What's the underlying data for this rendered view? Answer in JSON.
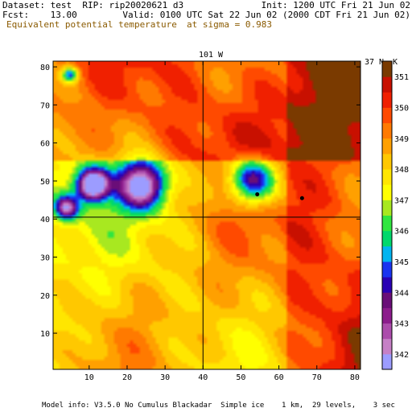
{
  "header": {
    "dataset": "Dataset: test  RIP: rip20020621 d3",
    "init": "Init: 1200 UTC Fri 21 Jun 02",
    "fcst": "Fcst:    13.00",
    "valid": "Valid: 0100 UTC Sat 22 Jun 02 (2000 CDT Fri 21 Jun 02)",
    "field": "Equivalent potential temperature",
    "level": "at sigma = 0.983"
  },
  "footer": "Model info: V3.5.0 No Cumulus Blackadar  Simple ice    1 km,  29 levels,    3 sec",
  "map_labels": {
    "meridian": "101 W",
    "parallel": "37 N"
  },
  "colors": {
    "title_secondary": "#8a5a00"
  },
  "chart_data": {
    "type": "heatmap",
    "title": "Equivalent potential temperature",
    "subtitle": "at sigma = 0.983",
    "x_ticks": [
      10,
      20,
      30,
      40,
      50,
      60,
      70,
      80
    ],
    "y_ticks": [
      10,
      20,
      30,
      40,
      50,
      60,
      70,
      80
    ],
    "xlim": [
      0.5,
      81.5
    ],
    "ylim": [
      0.5,
      81.5
    ],
    "colorbar_unit": "K",
    "colorbar_labels": [
      "342",
      "343",
      "344",
      "345",
      "346",
      "347",
      "348",
      "349",
      "350",
      "351"
    ],
    "colorbar_colors": [
      "#9c9cff",
      "#c680c6",
      "#ac4cac",
      "#8c1c8c",
      "#6a0e78",
      "#2a00b4",
      "#1a34f0",
      "#00b4f0",
      "#00d86c",
      "#30e640",
      "#a8e820",
      "#ffff00",
      "#ffe600",
      "#ffc800",
      "#ffa000",
      "#ff7a00",
      "#ff4a00",
      "#f02000",
      "#c81000",
      "#7a3a00"
    ],
    "colorbar_min": 341.5,
    "colorbar_max": 351.5,
    "features": [
      {
        "name": "cool-pool-1",
        "x": 11,
        "y": 49,
        "min_value": 341.8,
        "r": 4
      },
      {
        "name": "cool-pool-2",
        "x": 24,
        "y": 49,
        "min_value": 343.6,
        "r": 6
      },
      {
        "name": "cool-pool-3",
        "x": 53,
        "y": 50,
        "min_value": 344.0,
        "r": 6
      },
      {
        "name": "cool-pool-4",
        "x": 4,
        "y": 43,
        "min_value": 344.6,
        "r": 3
      },
      {
        "name": "cool-pool-5",
        "x": 5,
        "y": 78,
        "min_value": 345.6,
        "r": 2
      }
    ],
    "points": [
      {
        "name": "station-marker-1",
        "x": 54.3,
        "y": 46.5
      },
      {
        "name": "station-marker-2",
        "x": 66.1,
        "y": 45.5
      }
    ],
    "grid_lines": {
      "x": 40,
      "y": 40.5
    }
  }
}
